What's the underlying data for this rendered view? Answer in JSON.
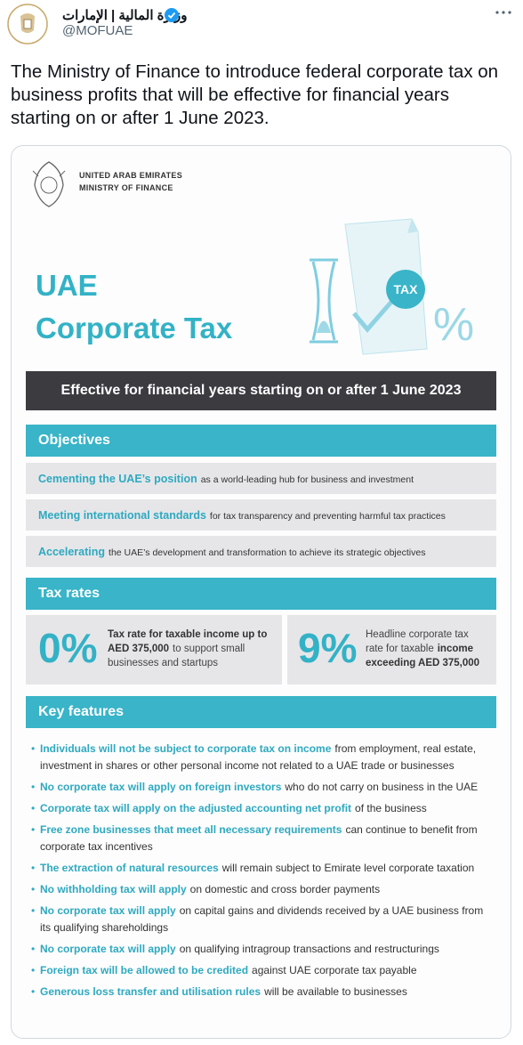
{
  "tweet": {
    "account_name": "وزارة المالية | الإمارات",
    "handle": "@MOFUAE",
    "text": "The Ministry of Finance to introduce federal corporate tax on business profits that will be effective for financial years starting on or after 1 June 2023."
  },
  "infographic": {
    "org": [
      "UNITED ARAB EMIRATES",
      "MINISTRY OF FINANCE"
    ],
    "title": [
      "UAE",
      "Corporate Tax"
    ],
    "graphic_label": "TAX",
    "graphic_percent": "%",
    "banner": "Effective for financial years starting on or after 1 June 2023",
    "objectives": {
      "heading": "Objectives",
      "items": [
        {
          "highlight": "Cementing the UAE’s position",
          "text": "as a world-leading hub for business and investment"
        },
        {
          "highlight": "Meeting international standards",
          "text": "for tax transparency and preventing harmful tax practices"
        },
        {
          "highlight": "Accelerating",
          "text": "the UAE’s development and transformation to achieve its strategic objectives"
        }
      ]
    },
    "tax_rates": {
      "heading": "Tax rates",
      "cards": [
        {
          "rate": "0%",
          "segments": [
            {
              "text": "Tax rate for taxable income up to AED 375,000",
              "bold": true
            },
            {
              "text": "to support small businesses and startups",
              "bold": false
            }
          ]
        },
        {
          "rate": "9%",
          "segments": [
            {
              "text": "Headline corporate tax rate for taxable",
              "bold": false
            },
            {
              "text": "income exceeding AED 375,000",
              "bold": true
            }
          ]
        }
      ]
    },
    "key_features": {
      "heading": "Key features",
      "items": [
        {
          "highlight": "Individuals will not be subject to corporate tax on income",
          "text": "from employment, real estate, investment in shares or other personal income not related to a UAE trade or businesses"
        },
        {
          "highlight": "No corporate tax will apply on foreign investors",
          "text": "who do not carry on business in the UAE"
        },
        {
          "highlight": "Corporate tax will apply on the adjusted accounting net profit",
          "text": "of the business"
        },
        {
          "highlight": "Free zone businesses that meet all necessary requirements",
          "text": "can continue to benefit from corporate tax incentives"
        },
        {
          "highlight": "The extraction of natural resources",
          "text": "will remain subject to Emirate level corporate taxation"
        },
        {
          "highlight": "No withholding tax will apply",
          "text": "on domestic and cross border payments"
        },
        {
          "highlight": "No corporate tax will apply",
          "text": "on capital gains and dividends received by a UAE business from its qualifying shareholdings"
        },
        {
          "highlight": "No corporate tax will apply",
          "text": "on qualifying intragroup transactions and restructurings"
        },
        {
          "highlight": "Foreign tax will be allowed to be credited",
          "text": "against UAE corporate tax payable"
        },
        {
          "highlight": "Generous loss transfer and utilisation rules",
          "text": "will be available to businesses"
        }
      ]
    }
  }
}
